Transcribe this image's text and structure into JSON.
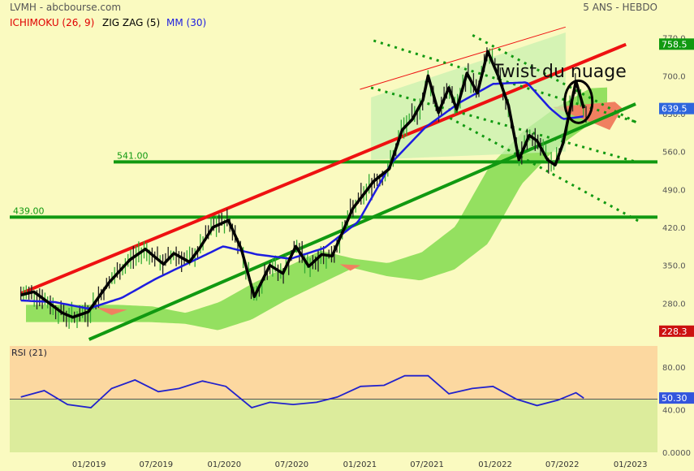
{
  "header": {
    "ticker": "LVMH - abcbourse.com",
    "period": "5 ANS - HEBDO"
  },
  "legend": {
    "ichimoku": "ICHIMOKU (26, 9)",
    "zigzag": "ZIG ZAG (5)",
    "mm": "MM (30)"
  },
  "colors": {
    "background": "#fafac0",
    "ichimoku": "#e00000",
    "zigzag": "#000000",
    "mm": "#1d1de0",
    "cloud_bull": "#88dd55",
    "cloud_bear": "#f08060",
    "trend_green": "#119911",
    "trend_red": "#ee1111",
    "rsi_line": "#2222cc",
    "rsi_upper_zone": "#fcd8a0",
    "rsi_lower_zone": "#dcec9c",
    "price_up": "#33aa33",
    "price_down": "#222222"
  },
  "annotation": {
    "text": "Twist du nuage"
  },
  "chart_data": [
    {
      "type": "line",
      "title": "LVMH",
      "x_ticks": [
        "01/2019",
        "07/2019",
        "01/2020",
        "07/2020",
        "01/2021",
        "07/2021",
        "01/2022",
        "07/2022",
        "01/2023"
      ],
      "y_ticks": [
        280,
        350,
        420,
        490,
        560,
        630,
        700,
        770
      ],
      "y_tick_labels": [
        "280.0",
        "350.0",
        "420.0",
        "490.0",
        "560.0",
        "630.0",
        "700.0",
        "770.0"
      ],
      "ylim": [
        210,
        780
      ],
      "price_tags": [
        {
          "label": "758.5",
          "value": 758.5,
          "color": "#119911"
        },
        {
          "label": "639.5",
          "value": 639.5,
          "color": "#2f66dd"
        },
        {
          "label": "228.3",
          "value": 228.3,
          "color": "#cc1111"
        }
      ],
      "horizontal_levels": [
        {
          "label": "541.00",
          "value": 541.0
        },
        {
          "label": "439.00",
          "value": 439.0
        }
      ],
      "series": [
        {
          "name": "ZIG ZAG (5)",
          "x": [
            "2018-07-01",
            "2018-08-05",
            "2018-09-02",
            "2018-10-21",
            "2018-11-18",
            "2018-12-30",
            "2019-02-24",
            "2019-04-21",
            "2019-06-02",
            "2019-07-21",
            "2019-08-18",
            "2019-09-29",
            "2019-10-27",
            "2019-12-01",
            "2020-01-12",
            "2020-02-16",
            "2020-03-22",
            "2020-05-03",
            "2020-06-07",
            "2020-07-12",
            "2020-08-16",
            "2020-09-20",
            "2020-10-18",
            "2020-12-13",
            "2021-02-07",
            "2021-03-21",
            "2021-04-25",
            "2021-05-23",
            "2021-06-20",
            "2021-07-04",
            "2021-08-01",
            "2021-08-29",
            "2021-09-19",
            "2021-10-17",
            "2021-11-14",
            "2021-12-12",
            "2022-01-09",
            "2022-02-06",
            "2022-03-06",
            "2022-04-03",
            "2022-04-24",
            "2022-05-22",
            "2022-06-12",
            "2022-07-03",
            "2022-08-07",
            "2022-08-28"
          ],
          "y": [
            295,
            301,
            287,
            262,
            254,
            264,
            318,
            360,
            380,
            352,
            372,
            356,
            382,
            420,
            433,
            380,
            292,
            350,
            335,
            385,
            348,
            370,
            367,
            455,
            505,
            528,
            600,
            620,
            655,
            700,
            632,
            678,
            638,
            705,
            668,
            745,
            700,
            645,
            545,
            590,
            580,
            545,
            535,
            575,
            690,
            640
          ]
        },
        {
          "name": "MM (30)",
          "x": [
            "2018-07-01",
            "2018-10-01",
            "2018-12-30",
            "2019-03-31",
            "2019-06-30",
            "2019-09-29",
            "2019-12-29",
            "2020-03-29",
            "2020-06-28",
            "2020-09-27",
            "2020-12-27",
            "2021-03-28",
            "2021-06-27",
            "2021-09-26",
            "2021-12-26",
            "2022-03-27",
            "2022-05-29",
            "2022-07-03",
            "2022-08-28"
          ],
          "y": [
            285,
            282,
            270,
            290,
            325,
            355,
            385,
            370,
            362,
            382,
            430,
            540,
            605,
            650,
            685,
            688,
            640,
            620,
            625
          ]
        },
        {
          "name": "RSI (21)",
          "x": [
            "2018-07-01",
            "2018-09-02",
            "2018-11-04",
            "2019-01-06",
            "2019-03-03",
            "2019-05-05",
            "2019-07-07",
            "2019-09-01",
            "2019-11-03",
            "2020-01-05",
            "2020-03-15",
            "2020-05-03",
            "2020-07-05",
            "2020-09-06",
            "2020-11-01",
            "2021-01-03",
            "2021-03-07",
            "2021-05-02",
            "2021-07-04",
            "2021-08-29",
            "2021-10-31",
            "2021-12-26",
            "2022-02-27",
            "2022-04-24",
            "2022-06-19",
            "2022-08-07",
            "2022-08-28"
          ],
          "y": [
            52,
            58,
            45,
            42,
            60,
            68,
            57,
            60,
            67,
            62,
            42,
            47,
            45,
            47,
            52,
            62,
            63,
            72,
            72,
            55,
            60,
            62,
            50,
            44,
            49,
            56,
            51
          ]
        }
      ]
    },
    {
      "type": "line",
      "title": "RSI (21)",
      "y_ticks": [
        0,
        40,
        80
      ],
      "y_tick_labels": [
        "0.0000",
        "40.00",
        "80.00"
      ],
      "ylim": [
        0,
        100
      ],
      "last_value_label": "50.30",
      "last_value": 50.3
    }
  ]
}
